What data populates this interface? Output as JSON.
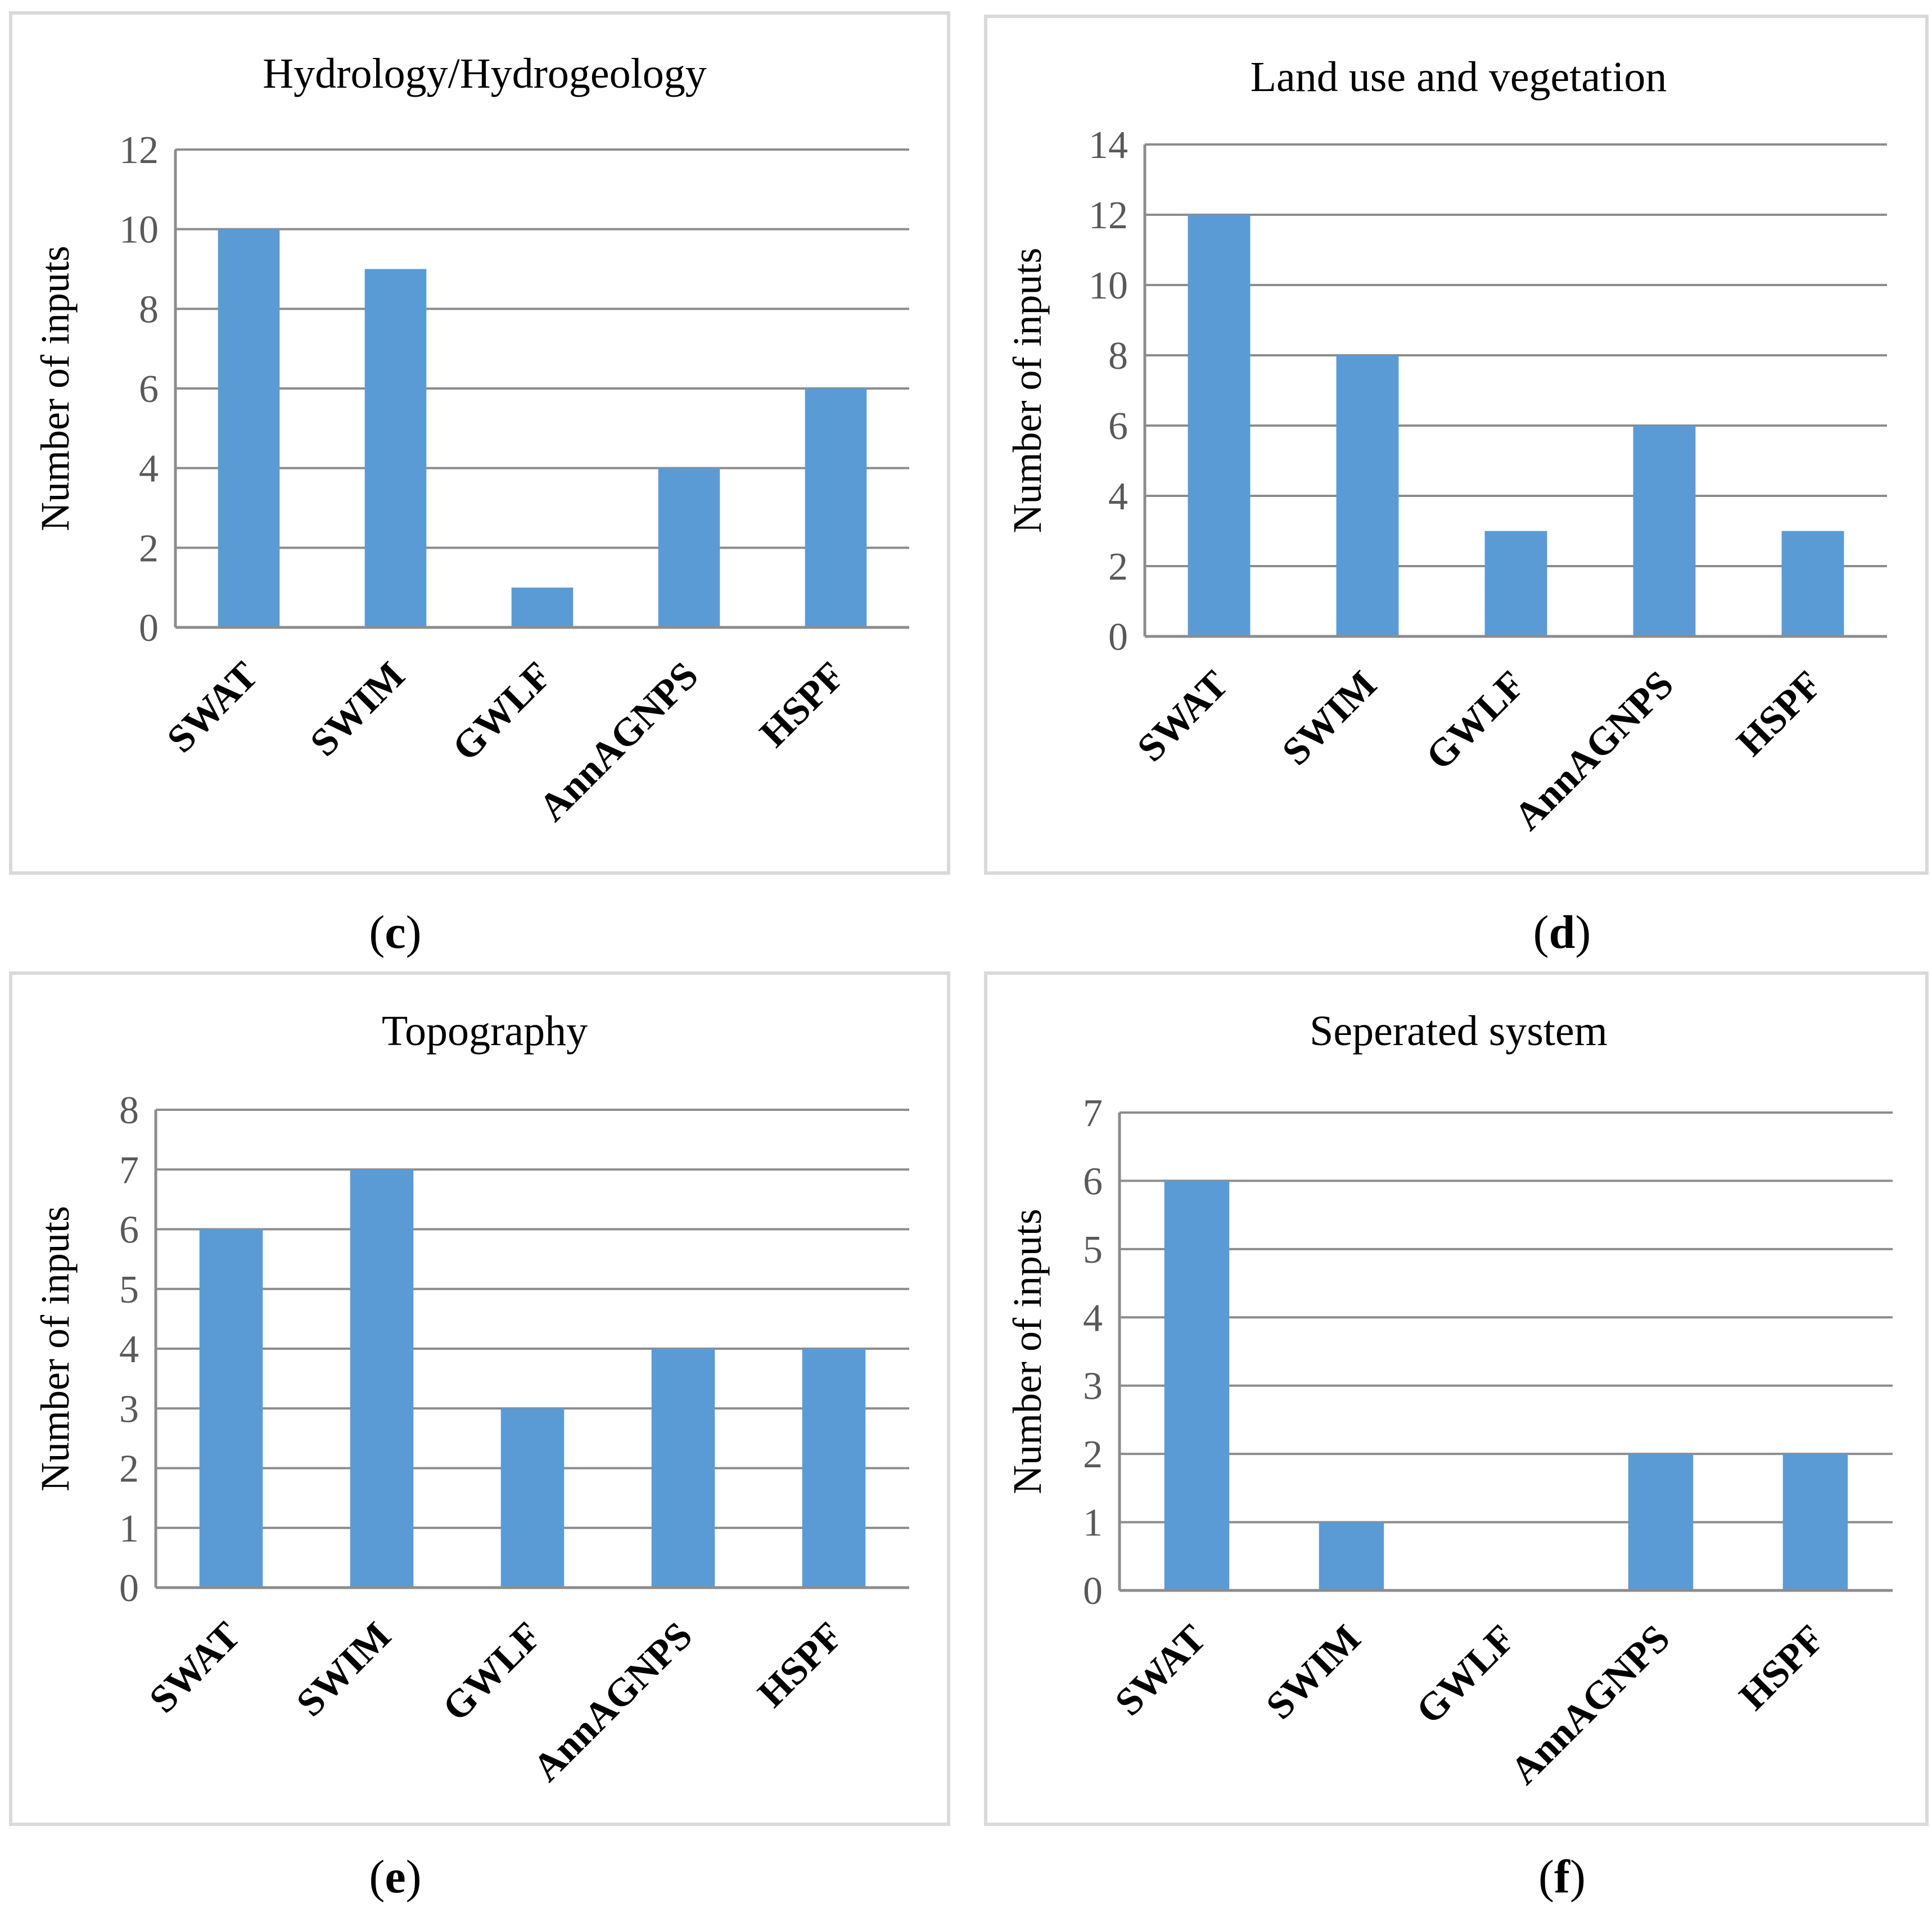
{
  "colors": {
    "bar": "#5b9bd5",
    "grid": "#8c8c8c",
    "frame": "#d9d9d9"
  },
  "chart_data": [
    {
      "id": "c",
      "type": "bar",
      "title": "Hydrology/Hydrogeology",
      "caption_open": "(",
      "caption_letter": "c",
      "caption_close": ")",
      "ylabel": "Number of inputs",
      "categories": [
        "SWAT",
        "SWIM",
        "GWLF",
        "AnnAGNPS",
        "HSPF"
      ],
      "values": [
        10,
        9,
        1,
        4,
        6
      ],
      "ylim": [
        0,
        12
      ],
      "yticks": [
        "0",
        "2",
        "4",
        "6",
        "8",
        "10",
        "12"
      ],
      "grid": true
    },
    {
      "id": "d",
      "type": "bar",
      "title": "Land use and vegetation",
      "caption_open": "(",
      "caption_letter": "d",
      "caption_close": ")",
      "ylabel": "Number of inputs",
      "categories": [
        "SWAT",
        "SWIM",
        "GWLF",
        "AnnAGNPS",
        "HSPF"
      ],
      "values": [
        12,
        8,
        3,
        6,
        3
      ],
      "ylim": [
        0,
        14
      ],
      "yticks": [
        "0",
        "2",
        "4",
        "6",
        "8",
        "10",
        "12",
        "14"
      ],
      "grid": true
    },
    {
      "id": "e",
      "type": "bar",
      "title": "Topography",
      "caption_open": "(",
      "caption_letter": "e",
      "caption_close": ")",
      "ylabel": "Number of inputs",
      "categories": [
        "SWAT",
        "SWIM",
        "GWLF",
        "AnnAGNPS",
        "HSPF"
      ],
      "values": [
        6,
        7,
        3,
        4,
        4
      ],
      "ylim": [
        0,
        8
      ],
      "yticks": [
        "0",
        "1",
        "2",
        "3",
        "4",
        "5",
        "6",
        "7",
        "8"
      ],
      "grid": true
    },
    {
      "id": "f",
      "type": "bar",
      "title": "Seperated system",
      "caption_open": "(",
      "caption_letter": "f",
      "caption_close": ")",
      "ylabel": "Number of inputs",
      "categories": [
        "SWAT",
        "SWIM",
        "GWLF",
        "AnnAGNPS",
        "HSPF"
      ],
      "values": [
        6,
        1,
        0,
        2,
        2
      ],
      "ylim": [
        0,
        7
      ],
      "yticks": [
        "0",
        "1",
        "2",
        "3",
        "4",
        "5",
        "6",
        "7"
      ],
      "grid": true
    }
  ]
}
